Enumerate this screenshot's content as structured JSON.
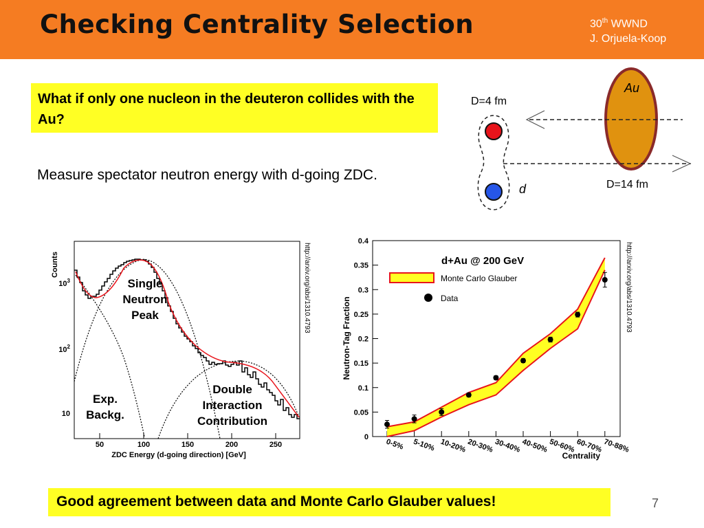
{
  "slide": {
    "title": "Checking Centrality Selection",
    "byline_num": "30",
    "byline_sup": "th",
    "byline_conf": "WWND",
    "byline_author": "J. Orjuela-Koop",
    "question": "What if only one nucleon in the deuteron collides with the Au?",
    "measure": "Measure spectator neutron energy with d-going ZDC.",
    "conclusion": "Good agreement between data and Monte Carlo Glauber values!",
    "page_number": "7"
  },
  "diagram": {
    "label_d4": "D=4 fm",
    "label_d14": "D=14 fm",
    "label_au": "Au",
    "label_d": "d",
    "colors": {
      "proton": "#e8141b",
      "neutron": "#2656e8",
      "au_fill": "#e0920f",
      "au_edge": "#8a2a2a"
    }
  },
  "zdc_plot": {
    "ylabel": "Counts",
    "xlabel": "ZDC Energy (d-going direction) [GeV]",
    "source": "http://arxiv.org/abs/1310.4793",
    "label_peak": [
      "Single",
      "Neutron",
      "Peak"
    ],
    "label_exp": [
      "Exp.",
      "Backg."
    ],
    "label_double": [
      "Double",
      "Interaction",
      "Contribution"
    ]
  },
  "chart_data": {
    "type": "line",
    "title": "d+Au @ 200 GeV",
    "xlabel": "Centrality",
    "ylabel": "Neutron-Tag Fraction",
    "categories": [
      "0-5%",
      "5-10%",
      "10-20%",
      "20-30%",
      "30-40%",
      "40-50%",
      "50-60%",
      "60-70%",
      "70-88%"
    ],
    "ylim": [
      0,
      0.4
    ],
    "yticks": [
      "0",
      "0.05",
      "0.1",
      "0.15",
      "0.2",
      "0.25",
      "0.3",
      "0.35",
      "0.4"
    ],
    "source": "http://arxiv.org/abs/1310.4793",
    "series": [
      {
        "name": "Monte Carlo Glauber",
        "style": "band",
        "lower": [
          0.0,
          0.012,
          0.04,
          0.065,
          0.085,
          0.135,
          0.18,
          0.22,
          0.34
        ],
        "upper": [
          0.02,
          0.03,
          0.06,
          0.09,
          0.11,
          0.17,
          0.21,
          0.26,
          0.365
        ]
      },
      {
        "name": "Data",
        "style": "points",
        "values": [
          0.025,
          0.036,
          0.05,
          0.085,
          0.12,
          0.155,
          0.198,
          0.249,
          0.32
        ],
        "errors": [
          0.008,
          0.008,
          0.007,
          0.004,
          0.004,
          0.004,
          0.005,
          0.005,
          0.015
        ]
      }
    ],
    "colors": {
      "band_fill": "#ffff22",
      "band_edge": "#e8141b",
      "points": "#000000"
    }
  }
}
